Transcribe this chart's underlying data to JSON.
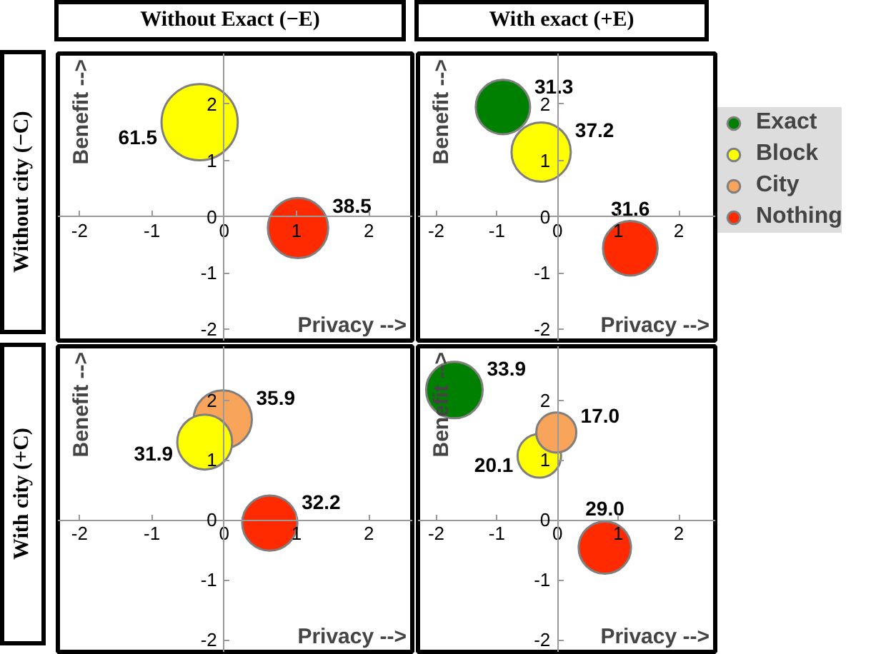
{
  "chart_data": [
    {
      "type": "bubble",
      "title": "Without Exact (−E)",
      "annotations": [
        "Without city (−C)"
      ],
      "xlabel": "Privacy -->",
      "ylabel": "Benefit -->",
      "xlim": [
        -2.3,
        2.6
      ],
      "ylim": [
        -2.2,
        2.9
      ],
      "xticks": [
        -2,
        -1,
        0,
        1,
        2
      ],
      "yticks": [
        -2,
        -1,
        0,
        1,
        2
      ],
      "grid": false,
      "legend": false,
      "series": [
        {
          "color": "#ffff00",
          "x": [
            -0.34
          ],
          "values": [
            1.68
          ],
          "sizes": [
            61.5
          ],
          "value_labels": [
            "61.5"
          ]
        },
        {
          "color": "#ff2a00",
          "x": [
            1.02
          ],
          "values": [
            -0.2
          ],
          "sizes": [
            38.5
          ],
          "value_labels": [
            "38.5"
          ]
        }
      ]
    },
    {
      "type": "bubble",
      "title": "With exact (+E)",
      "xlabel": "Privacy -->",
      "ylabel": "Benefit -->",
      "xlim": [
        -2.3,
        2.6
      ],
      "ylim": [
        -2.2,
        2.9
      ],
      "xticks": [
        -2,
        -1,
        0,
        1,
        2
      ],
      "yticks": [
        -2,
        -1,
        0,
        1,
        2
      ],
      "grid": false,
      "legend": false,
      "series": [
        {
          "color": "#008000",
          "x": [
            -0.9
          ],
          "values": [
            1.95
          ],
          "sizes": [
            31.3
          ],
          "value_labels": [
            "31.3"
          ]
        },
        {
          "color": "#ffff00",
          "x": [
            -0.27
          ],
          "values": [
            1.15
          ],
          "sizes": [
            37.2
          ],
          "value_labels": [
            "37.2"
          ]
        },
        {
          "color": "#ff2a00",
          "x": [
            1.2
          ],
          "values": [
            -0.56
          ],
          "sizes": [
            31.6
          ],
          "value_labels": [
            "31.6"
          ]
        }
      ]
    },
    {
      "type": "bubble",
      "annotations": [
        "With city (+C)"
      ],
      "xlabel": "Privacy -->",
      "ylabel": "Benefit -->",
      "xlim": [
        -2.3,
        2.6
      ],
      "ylim": [
        -2.2,
        2.9
      ],
      "xticks": [
        -2,
        -1,
        0,
        1,
        2
      ],
      "yticks": [
        -2,
        -1,
        0,
        1,
        2
      ],
      "grid": false,
      "legend": false,
      "series": [
        {
          "color": "#f8a45a",
          "x": [
            -0.02
          ],
          "values": [
            1.68
          ],
          "sizes": [
            35.9
          ],
          "value_labels": [
            "35.9"
          ]
        },
        {
          "color": "#ffff00",
          "x": [
            -0.27
          ],
          "values": [
            1.3
          ],
          "sizes": [
            31.9
          ],
          "value_labels": [
            "31.9"
          ]
        },
        {
          "color": "#ff2a00",
          "x": [
            0.63
          ],
          "values": [
            -0.05
          ],
          "sizes": [
            32.2
          ],
          "value_labels": [
            "32.2"
          ]
        }
      ]
    },
    {
      "type": "bubble",
      "xlabel": "Privacy -->",
      "ylabel": "Benefit -->",
      "xlim": [
        -2.3,
        2.6
      ],
      "ylim": [
        -2.2,
        2.9
      ],
      "xticks": [
        -2,
        -1,
        0,
        1,
        2
      ],
      "yticks": [
        -2,
        -1,
        0,
        1,
        2
      ],
      "grid": false,
      "legend": "right",
      "series": [
        {
          "name": "Exact",
          "color": "#008000",
          "x": [
            -1.7
          ],
          "values": [
            2.17
          ],
          "sizes": [
            33.9
          ],
          "value_labels": [
            "33.9"
          ]
        },
        {
          "name": "Block",
          "color": "#ffff00",
          "x": [
            -0.3
          ],
          "values": [
            1.07
          ],
          "sizes": [
            20.1
          ],
          "value_labels": [
            "20.1"
          ]
        },
        {
          "name": "City",
          "color": "#f8a45a",
          "x": [
            -0.02
          ],
          "values": [
            1.46
          ],
          "sizes": [
            17.0
          ],
          "value_labels": [
            "17.0"
          ]
        },
        {
          "name": "Nothing",
          "color": "#ff2a00",
          "x": [
            0.78
          ],
          "values": [
            -0.46
          ],
          "sizes": [
            29.0
          ],
          "value_labels": [
            "29.0"
          ]
        }
      ]
    }
  ]
}
